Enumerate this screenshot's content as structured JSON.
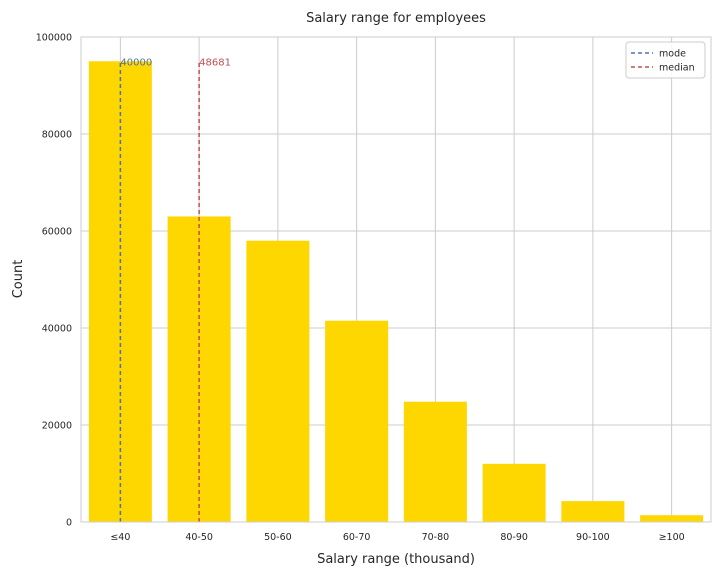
{
  "chart_data": {
    "type": "bar",
    "title": "Salary range for employees",
    "xlabel": "Salary range (thousand)",
    "ylabel": "Count",
    "categories": [
      "≤40",
      "40-50",
      "50-60",
      "60-70",
      "70-80",
      "80-90",
      "90-100",
      "≥100"
    ],
    "values": [
      95000,
      63000,
      58000,
      41500,
      24800,
      12000,
      4300,
      1400
    ],
    "ylim": [
      0,
      100000
    ],
    "yticks": [
      0,
      20000,
      40000,
      60000,
      80000,
      100000
    ],
    "ytick_labels": [
      "0",
      "20000",
      "40000",
      "60000",
      "80000",
      "100000"
    ],
    "grid": true,
    "bar_color": "#ffd700",
    "reference_lines": [
      {
        "name": "mode",
        "label": "40000",
        "x_value": 40000,
        "x_category_position": 0,
        "y_top": 95000,
        "color": "#4c72b0"
      },
      {
        "name": "median",
        "label": "48681",
        "x_value": 48681,
        "x_category_position": 1,
        "y_top": 95000,
        "color": "#c44e52"
      }
    ],
    "legend": {
      "position": "top-right",
      "entries": [
        "mode",
        "median"
      ]
    }
  }
}
